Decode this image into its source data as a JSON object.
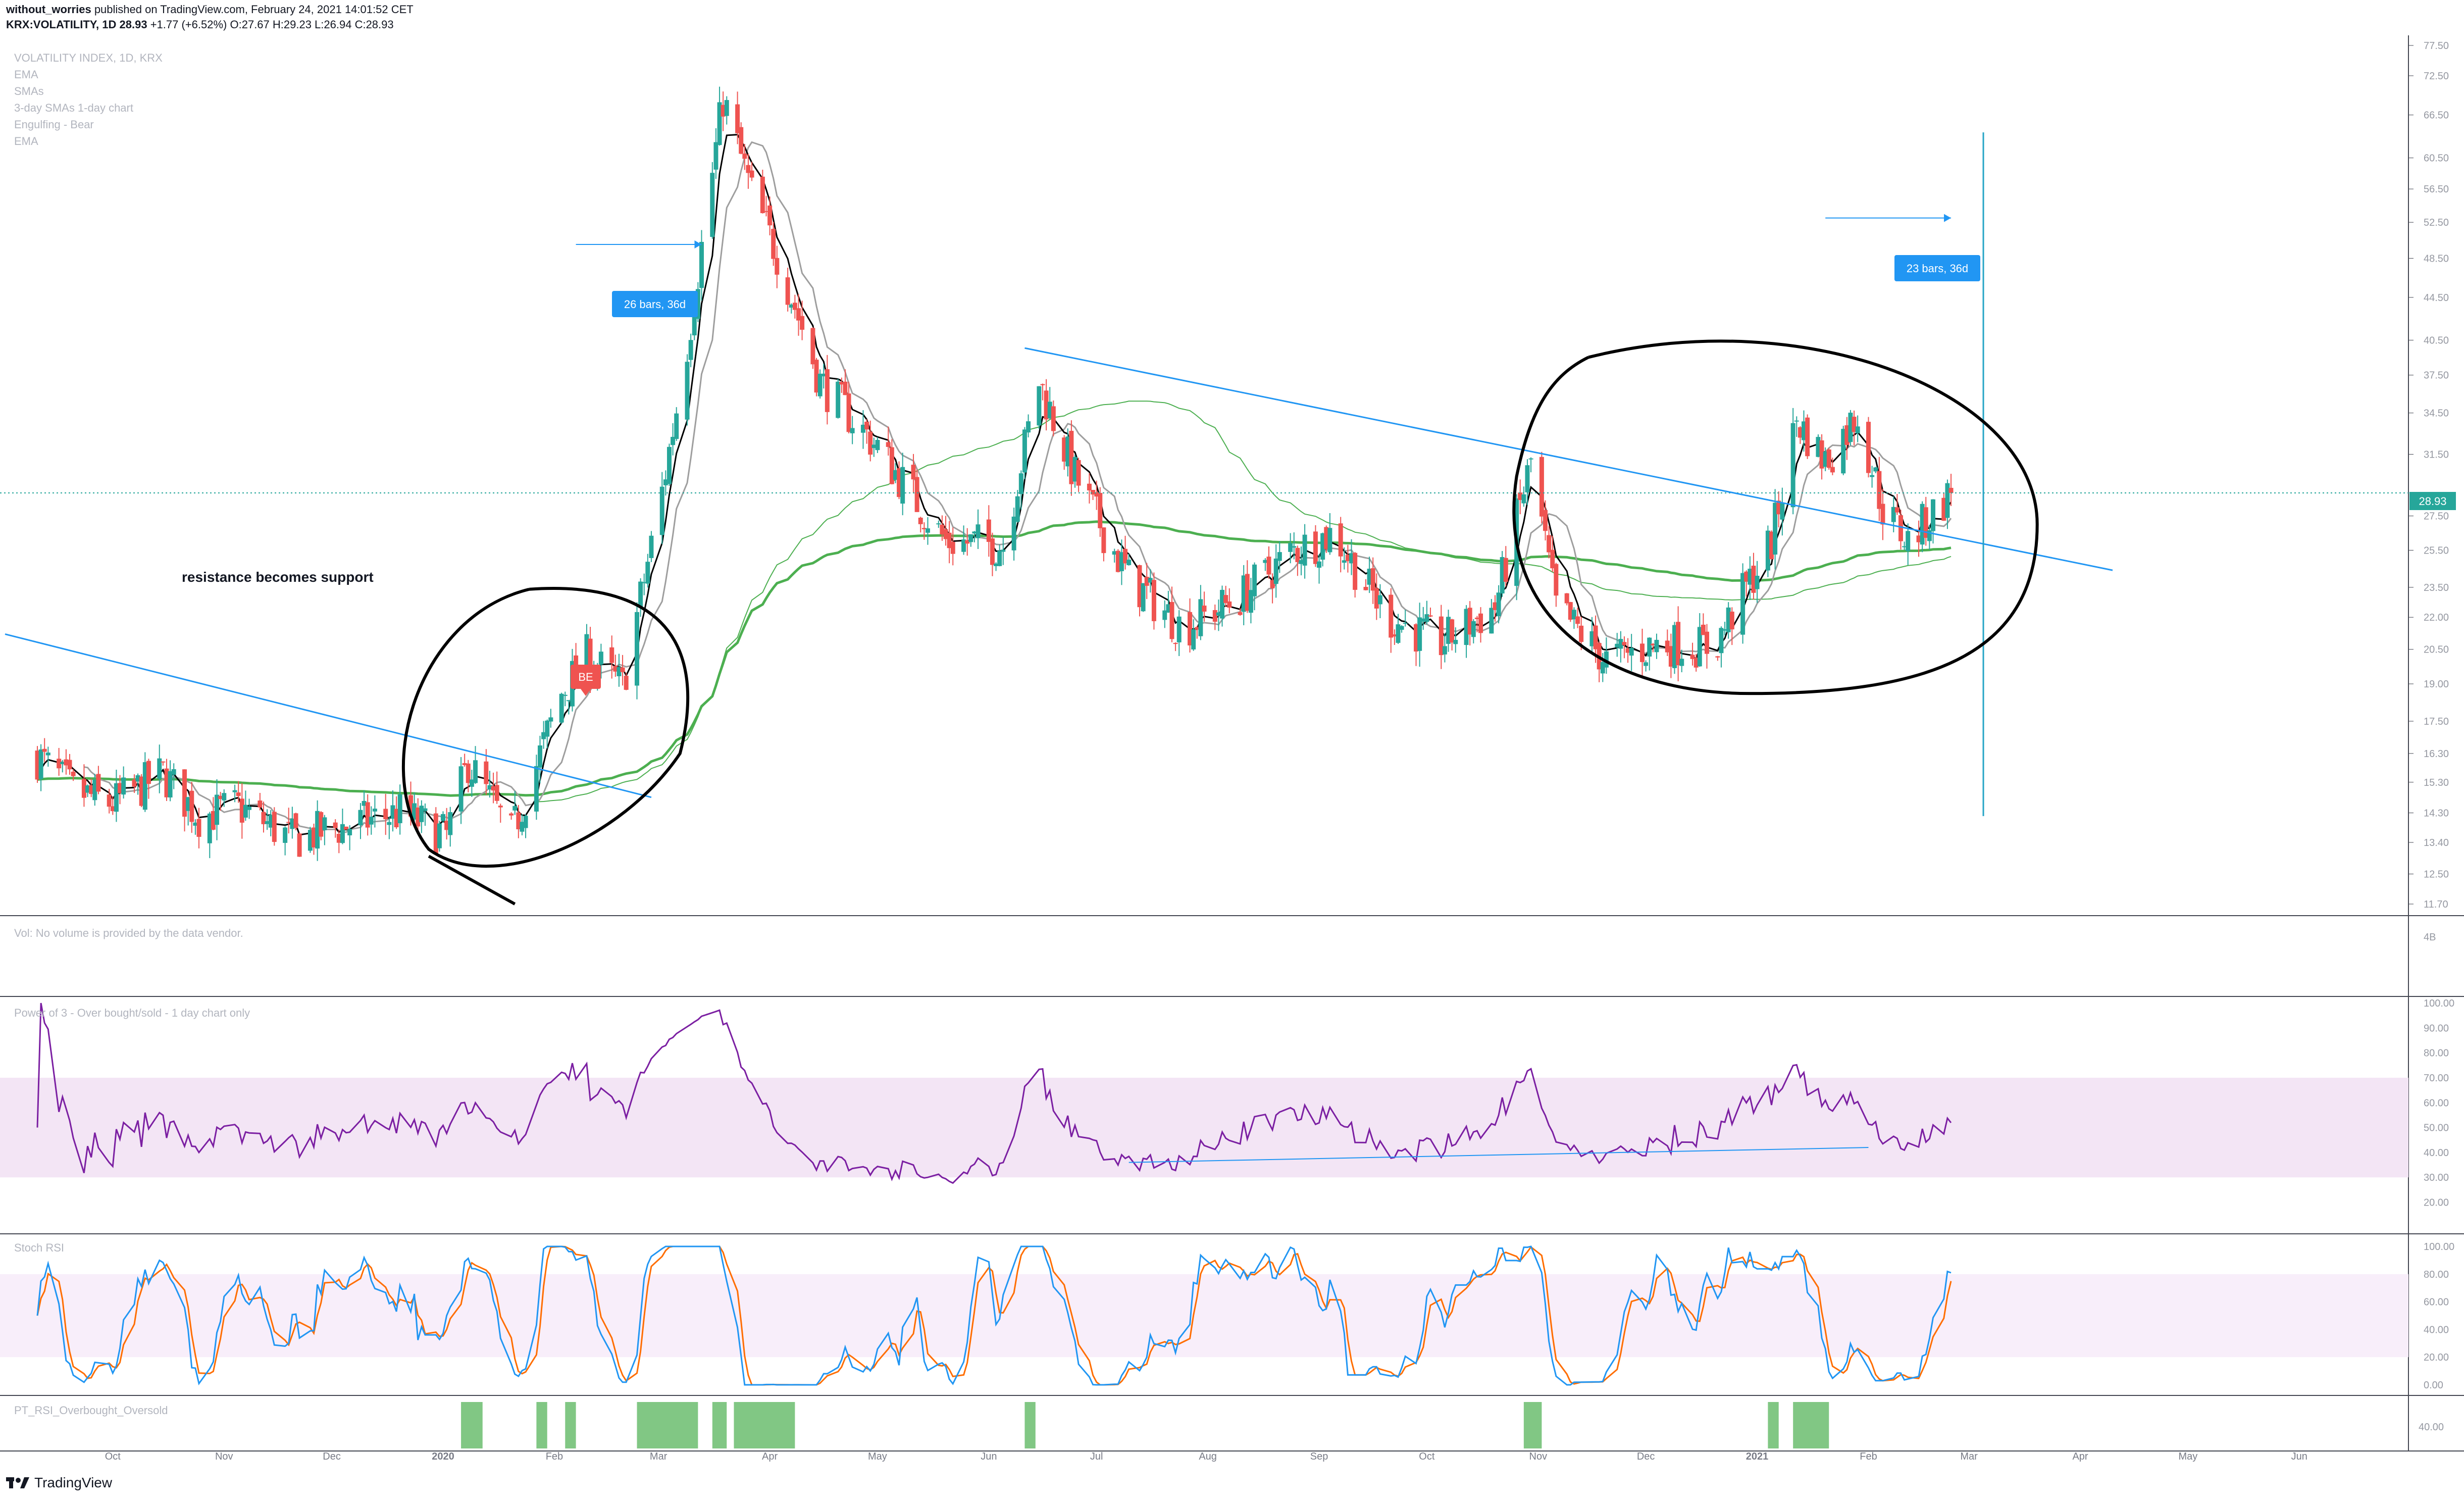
{
  "header": {
    "publisher": "without_worries",
    "published_text": "published on TradingView.com, February 24, 2021 14:01:52 CET",
    "symbol": "KRX:VOLATILITY, 1D",
    "last": "28.93",
    "change": "+1.77 (+6.52%)",
    "ohlc": "O:27.67 H:29.23 L:26.94 C:28.93"
  },
  "legend": [
    "VOLATILITY INDEX, 1D, KRX",
    "EMA",
    "SMAs",
    "3-day SMAs 1-day chart",
    "Engulfing - Bear",
    "EMA"
  ],
  "annotations": {
    "text_note": "resistance becomes support",
    "measure_left": "26 bars, 36d",
    "measure_right": "23 bars, 36d",
    "be_label": "BE"
  },
  "panes": {
    "volume_label": "Vol: No volume is provided by the data vendor.",
    "volume_axis": "4B",
    "power_label": "Power of 3 - Over bought/sold - 1 day chart only",
    "stoch_label": "Stoch RSI",
    "pt_label": "PT_RSI_Overbought_Oversold",
    "pt_axis": "40.00"
  },
  "price_axis": [
    "77.50",
    "72.50",
    "66.50",
    "60.50",
    "56.50",
    "52.50",
    "48.50",
    "44.50",
    "40.50",
    "37.50",
    "34.50",
    "31.50",
    "27.50",
    "25.50",
    "23.50",
    "22.00",
    "20.50",
    "19.00",
    "17.50",
    "16.30",
    "15.30",
    "14.30",
    "13.40",
    "12.50",
    "11.70"
  ],
  "current_price_tag": "28.93",
  "power_axis": [
    "100.00",
    "90.00",
    "80.00",
    "70.00",
    "60.00",
    "50.00",
    "40.00",
    "30.00",
    "20.00"
  ],
  "stoch_axis": [
    "100.00",
    "80.00",
    "60.00",
    "40.00",
    "20.00",
    "0.00"
  ],
  "time_axis": [
    "Oct",
    "Nov",
    "Dec",
    "2020",
    "Feb",
    "Mar",
    "Apr",
    "May",
    "Jun",
    "Jul",
    "Aug",
    "Sep",
    "Oct",
    "Nov",
    "Dec",
    "2021",
    "Feb",
    "Mar",
    "Apr",
    "May",
    "Jun"
  ],
  "branding": "TradingView",
  "colors": {
    "up": "#26a69a",
    "down": "#ef5350",
    "trendline": "#2196f3",
    "ema_fast": "#000000",
    "sma_grey": "#9e9e9e",
    "ma_green": "#4caf50",
    "rsi": "#7b1fa2",
    "stoch_k": "#2196f3",
    "stoch_d": "#ff6d00",
    "pt_bars": "#81c784",
    "band": "#f3e5f5"
  },
  "chart_data": {
    "type": "candlestick",
    "interval": "1D",
    "y_scale": "log",
    "ylim": [
      11.7,
      77.5
    ],
    "x_range": [
      "2019-09",
      "2021-06"
    ],
    "close_path": [
      {
        "date": "2019-09-10",
        "close": 16.2
      },
      {
        "date": "2019-09-20",
        "close": 15.0
      },
      {
        "date": "2019-10-01",
        "close": 14.6
      },
      {
        "date": "2019-10-15",
        "close": 15.6
      },
      {
        "date": "2019-10-25",
        "close": 14.2
      },
      {
        "date": "2019-11-05",
        "close": 14.5
      },
      {
        "date": "2019-11-20",
        "close": 13.5
      },
      {
        "date": "2019-12-05",
        "close": 13.9
      },
      {
        "date": "2019-12-20",
        "close": 14.3
      },
      {
        "date": "2020-01-02",
        "close": 13.6
      },
      {
        "date": "2020-01-08",
        "close": 16.0
      },
      {
        "date": "2020-01-20",
        "close": 13.6
      },
      {
        "date": "2020-02-03",
        "close": 18.6
      },
      {
        "date": "2020-02-10",
        "close": 20.2
      },
      {
        "date": "2020-02-20",
        "close": 18.9
      },
      {
        "date": "2020-03-02",
        "close": 29.0
      },
      {
        "date": "2020-03-09",
        "close": 40.0
      },
      {
        "date": "2020-03-19",
        "close": 69.0
      },
      {
        "date": "2020-03-27",
        "close": 56.0
      },
      {
        "date": "2020-04-03",
        "close": 49.0
      },
      {
        "date": "2020-04-15",
        "close": 37.0
      },
      {
        "date": "2020-05-01",
        "close": 32.0
      },
      {
        "date": "2020-05-20",
        "close": 26.0
      },
      {
        "date": "2020-06-05",
        "close": 25.8
      },
      {
        "date": "2020-06-15",
        "close": 37.0
      },
      {
        "date": "2020-06-25",
        "close": 30.0
      },
      {
        "date": "2020-07-10",
        "close": 24.0
      },
      {
        "date": "2020-07-25",
        "close": 21.5
      },
      {
        "date": "2020-08-10",
        "close": 23.0
      },
      {
        "date": "2020-08-25",
        "close": 25.5
      },
      {
        "date": "2020-09-05",
        "close": 26.5
      },
      {
        "date": "2020-09-20",
        "close": 22.0
      },
      {
        "date": "2020-10-05",
        "close": 20.8
      },
      {
        "date": "2020-10-20",
        "close": 22.5
      },
      {
        "date": "2020-10-30",
        "close": 31.0
      },
      {
        "date": "2020-11-06",
        "close": 22.5
      },
      {
        "date": "2020-11-20",
        "close": 20.0
      },
      {
        "date": "2020-12-05",
        "close": 20.8
      },
      {
        "date": "2020-12-20",
        "close": 20.6
      },
      {
        "date": "2021-01-05",
        "close": 26.0
      },
      {
        "date": "2021-01-12",
        "close": 34.0
      },
      {
        "date": "2021-01-20",
        "close": 31.0
      },
      {
        "date": "2021-01-29",
        "close": 34.5
      },
      {
        "date": "2021-02-05",
        "close": 28.0
      },
      {
        "date": "2021-02-12",
        "close": 26.0
      },
      {
        "date": "2021-02-24",
        "close": 28.93
      }
    ],
    "last_close": 28.93
  }
}
